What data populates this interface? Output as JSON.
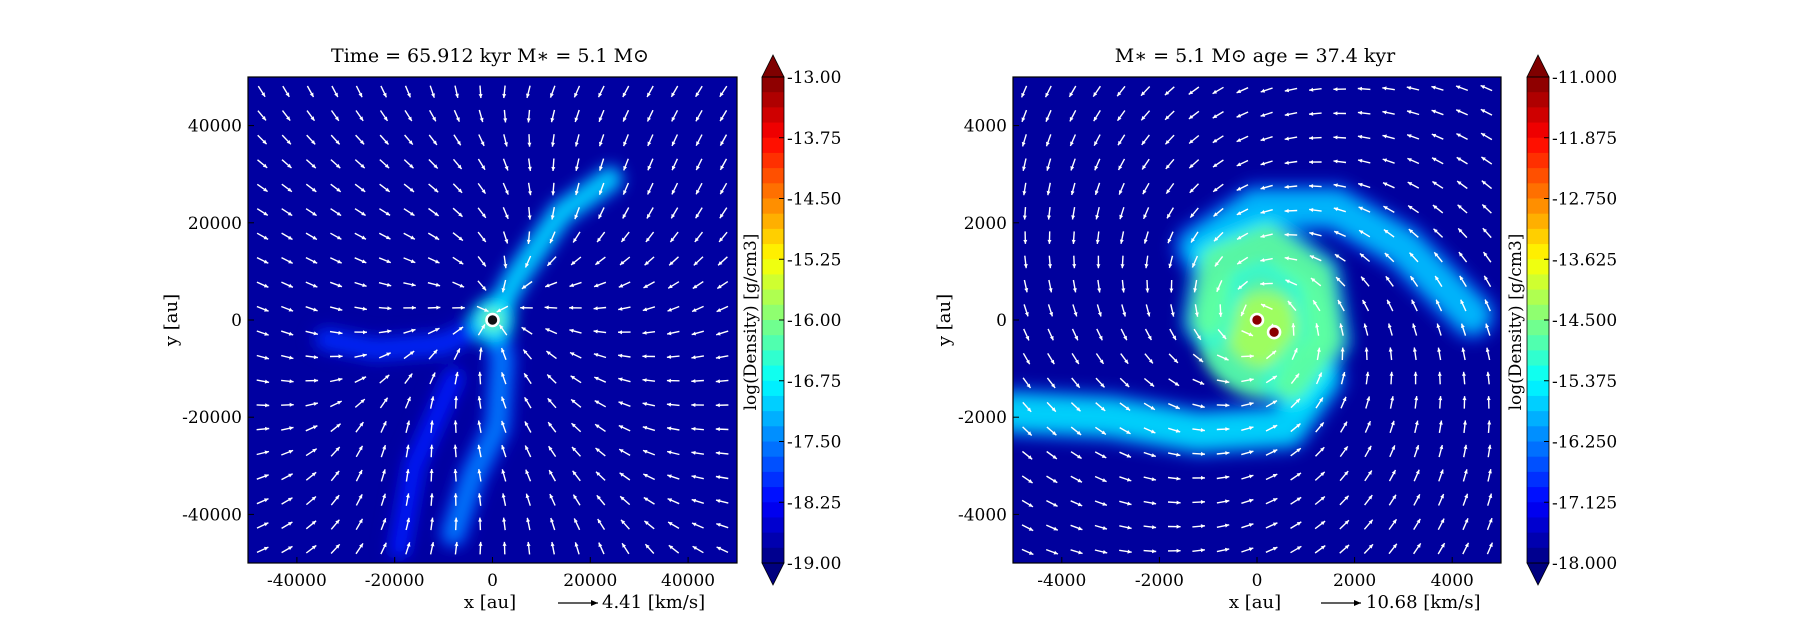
{
  "colors": {
    "background": "#000080",
    "arrows": "#ffffff",
    "sink": "#ffffff"
  },
  "chart_data": [
    {
      "type": "heatmap",
      "title": "Time = 65.912 kyr    M$_*$ = 5.1 M$_\\odot$",
      "title_text": "Time = 65.912 kyr    M∗ = 5.1 M⊙",
      "xlabel": "x [au]",
      "ylabel": "y [au]",
      "xlim": [
        -50000,
        50000
      ],
      "ylim": [
        -50000,
        50000
      ],
      "xticks": [
        -40000,
        -20000,
        0,
        20000,
        40000
      ],
      "yticks": [
        40000,
        20000,
        0,
        -20000,
        -40000
      ],
      "colorbar": {
        "label": "log(Density) [g/cm3]",
        "range": [
          -19.0,
          -13.0
        ],
        "ticks": [
          "-13.00",
          "-13.75",
          "-14.50",
          "-15.25",
          "-16.00",
          "-16.75",
          "-17.50",
          "-18.25",
          "-19.00"
        ]
      },
      "quiver_key": {
        "label": "4.41 [km/s]",
        "value": 4.41
      },
      "sink_particles": [
        {
          "x": 0,
          "y": 0
        }
      ],
      "features": [
        {
          "kind": "filament",
          "points": [
            [
              0,
              0
            ],
            [
              5000,
              9000
            ],
            [
              14000,
              22000
            ],
            [
              24000,
              29000
            ]
          ],
          "log_density": -17.0
        },
        {
          "kind": "filament",
          "points": [
            [
              0,
              0
            ],
            [
              2000,
              -8000
            ],
            [
              1000,
              -22000
            ],
            [
              -4000,
              -32000
            ],
            [
              -8000,
              -44000
            ]
          ],
          "log_density": -17.5
        },
        {
          "kind": "filament",
          "points": [
            [
              0,
              0
            ],
            [
              -10000,
              -5000
            ],
            [
              -24000,
              -6000
            ],
            [
              -34000,
              -4000
            ]
          ],
          "log_density": -18.0
        },
        {
          "kind": "filament",
          "points": [
            [
              -8000,
              -12000
            ],
            [
              -16000,
              -30000
            ],
            [
              -19000,
              -47000
            ]
          ],
          "log_density": -18.1
        },
        {
          "kind": "clump",
          "x": 0,
          "y": 0,
          "log_density": -16.0
        }
      ]
    },
    {
      "type": "heatmap",
      "title": "M$_*$ = 5.1 M$_\\odot$          age = 37.4 kyr",
      "title_text": "M∗ = 5.1 M⊙          age = 37.4 kyr",
      "xlabel": "x [au]",
      "ylabel": "y [au]",
      "xlim": [
        -5000,
        5000
      ],
      "ylim": [
        -5000,
        5000
      ],
      "xticks": [
        -4000,
        -2000,
        0,
        2000,
        4000
      ],
      "yticks": [
        4000,
        2000,
        0,
        -2000,
        -4000
      ],
      "colorbar": {
        "label": "log(Density) [g/cm3]",
        "range": [
          -18.0,
          -11.0
        ],
        "ticks": [
          "-11.000",
          "-11.875",
          "-12.750",
          "-13.625",
          "-14.500",
          "-15.375",
          "-16.250",
          "-17.125",
          "-18.000"
        ]
      },
      "quiver_key": {
        "label": "10.68 [km/s]",
        "value": 10.68
      },
      "sink_particles": [
        {
          "x": 0,
          "y": 0
        },
        {
          "x": 350,
          "y": -250
        }
      ],
      "features": [
        {
          "kind": "disk",
          "x": 150,
          "y": -200,
          "radius": 1400,
          "log_density": -14.8
        },
        {
          "kind": "spiral-arm",
          "points": [
            [
              -1200,
              1500
            ],
            [
              0,
              2300
            ],
            [
              1600,
              2300
            ],
            [
              3000,
              1500
            ],
            [
              4400,
              100
            ]
          ],
          "log_density": -15.8
        },
        {
          "kind": "spiral-arm",
          "points": [
            [
              1300,
              -1200
            ],
            [
              600,
              -2200
            ],
            [
              -1200,
              -2300
            ],
            [
              -3000,
              -2000
            ],
            [
              -5000,
              -1900
            ]
          ],
          "log_density": -15.6
        },
        {
          "kind": "spiral-arm",
          "points": [
            [
              -1000,
              0
            ],
            [
              -800,
              1200
            ],
            [
              200,
              1600
            ],
            [
              1200,
              900
            ],
            [
              1400,
              -400
            ],
            [
              700,
              -1300
            ]
          ],
          "log_density": -14.7
        }
      ]
    }
  ]
}
